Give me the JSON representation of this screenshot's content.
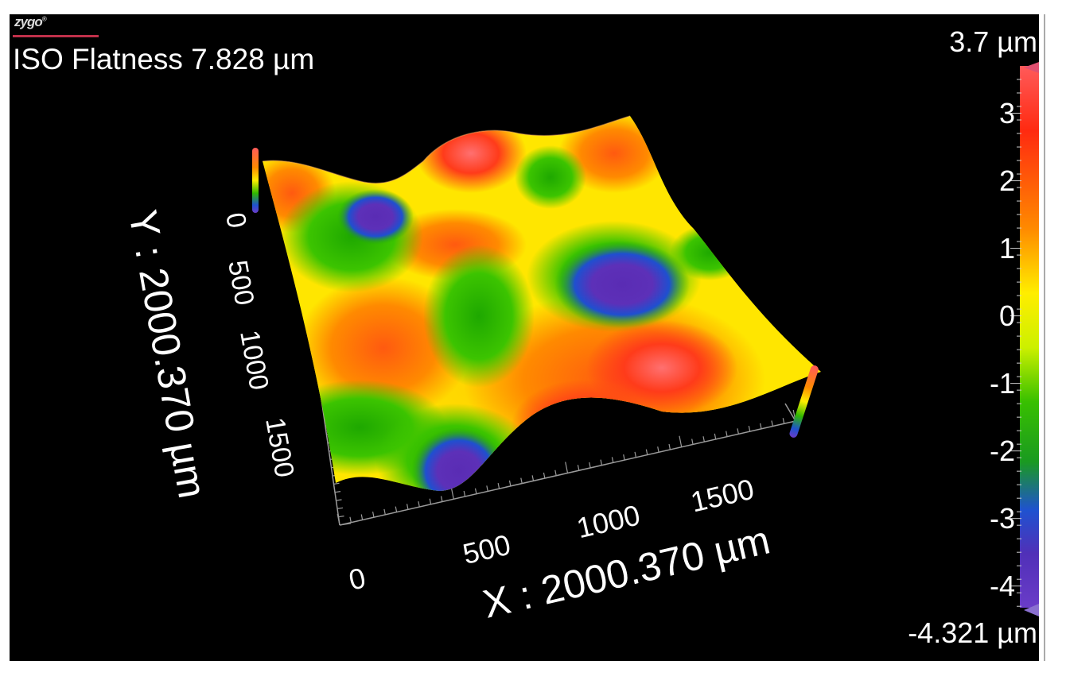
{
  "logo": {
    "text": "zygo",
    "mark": "®"
  },
  "title": "ISO Flatness 7.828 µm",
  "x_axis": {
    "label": "X : 2000.370 µm",
    "ticks": [
      "0",
      "500",
      "1000",
      "1500"
    ]
  },
  "y_axis": {
    "label": "Y : 2000.370 µm",
    "ticks": [
      "0",
      "500",
      "1000",
      "1500"
    ]
  },
  "colorbar": {
    "max_label": "3.7 µm",
    "min_label": "-4.321 µm",
    "ticks": [
      "3",
      "2",
      "1",
      "0",
      "-1",
      "-2",
      "-3",
      "-4"
    ],
    "max": 3.7,
    "min": -4.321,
    "colors": [
      "#ff3b3b",
      "#ff7a00",
      "#ffd400",
      "#ffff4a",
      "#7ddc00",
      "#1fb000",
      "#1c4fd6",
      "#5b2fb0"
    ]
  }
}
